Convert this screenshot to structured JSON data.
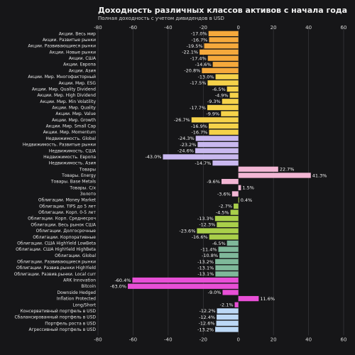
{
  "chart_data": {
    "type": "bar",
    "orientation": "horizontal",
    "title": "Доходность различных классов активов с начала года",
    "subtitle": "Полная доходность с учетом дивидендов в USD",
    "xlim": [
      -80,
      60
    ],
    "xticks": [
      "-80",
      "-60",
      "-40",
      "-20",
      "0",
      "20",
      "40",
      "60"
    ],
    "grid": true,
    "categories": [
      "Акции. Весь мир",
      "Акции. Развитые рынки",
      "Акции. Развивающиеся рынки",
      "Акции. Новые рынки",
      "Акции. США",
      "Акции. Европа",
      "Акции. Азия",
      "Акции. Мир. Многофакторный",
      "Акции. Мир. ESG",
      "Акции. Мир. Quality Dividend",
      "Акции. Мир. High Dividend",
      "Акции. Мир. Min Volatility",
      "Акции. Мир. Quality",
      "Акции. Мир. Value",
      "Акции. Мир. Growth",
      "Акции. Мир. Small Cap",
      "Акции. Мир. Momentum",
      "Недвижимость. Global",
      "Недвижимость. Развитые рынки",
      "Недвижимость. США",
      "Недвижимость. Европа",
      "Недвижимость. Азия",
      "Товары",
      "Товары. Energy",
      "Товары. Base Metals",
      "Товары. С/х",
      "Золото",
      "Облигации. Money Market",
      "Облигации. TIPS до 5 лет",
      "Облигации. Корп. 0-5 лет",
      "Облигации. Корп. Среднесроч",
      "Облигации. Весь рынок США",
      "Облигации. Долгосрочные",
      "Облигации. Корпоративные",
      "Облигации. США HighYield LowBeta",
      "Облигации. США HighYield HighBeta",
      "Облигации. Global",
      "Облигации. Развивающиеся рынки",
      "Облигации. Развив.рынки HighYield",
      "Облигации. Развив.рынки. Local curr",
      "ARK Innovation",
      "Bitcoin",
      "Downside Hedged",
      "Inflation Protected",
      "Long/Short",
      "Консервативный портфель в USD",
      "Сбалансированный портфель в USD",
      "Портфель роста в USD",
      "Агрессивный портфель в USD"
    ],
    "values": [
      -17.0,
      -16.7,
      -19.5,
      -22.1,
      -17.4,
      -14.6,
      -20.8,
      -13.0,
      -17.5,
      -6.5,
      -4.9,
      -9.3,
      -17.7,
      -9.9,
      -26.7,
      -16.9,
      -16.7,
      -24.3,
      -23.2,
      -24.6,
      -43.0,
      -14.7,
      22.7,
      41.3,
      -9.6,
      1.5,
      -3.6,
      0.4,
      -2.7,
      -4.5,
      -13.3,
      -12.3,
      -23.6,
      -16.6,
      -6.5,
      -11.4,
      -10.8,
      -13.2,
      -13.1,
      -13.1,
      -60.4,
      -63.0,
      -9.0,
      11.6,
      -2.1,
      -12.2,
      -12.4,
      -12.6,
      -13.2
    ],
    "value_labels": [
      "-17.0%",
      "-16.7%",
      "-19.5%",
      "-22.1%",
      "-17.4%",
      "-14.6%",
      "-20.8%",
      "-13.0%",
      "-17.5%",
      "-6.5%",
      "-4.9%",
      "-9.3%",
      "-17.7%",
      "-9.9%",
      "-26.7%",
      "-16.9%",
      "-16.7%",
      "-24.3%",
      "-23.2%",
      "-24.6%",
      "-43.0%",
      "-14.7%",
      "22.7%",
      "41.3%",
      "-9.6%",
      "1.5%",
      "-3.6%",
      "0.4%",
      "-2.7%",
      "-4.5%",
      "-13.3%",
      "-12.3%",
      "-23.6%",
      "-16.6%",
      "-6.5%",
      "-11.4%",
      "-10.8%",
      "-13.2%",
      "-13.1%",
      "-13.1%",
      "-60.4%",
      "-63.0%",
      "-9.0%",
      "11.6%",
      "-2.1%",
      "-12.2%",
      "-12.4%",
      "-12.6%",
      "-13.2%"
    ],
    "colors": [
      "#f5a93c",
      "#f5a93c",
      "#f5a93c",
      "#f5a93c",
      "#f5a93c",
      "#f5a93c",
      "#f5a93c",
      "#f5d24a",
      "#f5d24a",
      "#f5d24a",
      "#f5d24a",
      "#f5d24a",
      "#f5d24a",
      "#f5d24a",
      "#f5d24a",
      "#f5d24a",
      "#f5d24a",
      "#c9b8f0",
      "#c9b8f0",
      "#c9b8f0",
      "#c9b8f0",
      "#c9b8f0",
      "#f2b6d4",
      "#f2b6d4",
      "#f2b6d4",
      "#f2b6d4",
      "#f2b6d4",
      "#a9cf4a",
      "#a9cf4a",
      "#a9cf4a",
      "#a9cf4a",
      "#a9cf4a",
      "#a9cf4a",
      "#a9cf4a",
      "#7fb89a",
      "#7fb89a",
      "#7fb89a",
      "#7fb89a",
      "#7fb89a",
      "#7fb89a",
      "#e84fd6",
      "#e84fd6",
      "#e84fd6",
      "#e84fd6",
      "#e84fd6",
      "#bcd8f6",
      "#bcd8f6",
      "#bcd8f6",
      "#bcd8f6"
    ]
  }
}
